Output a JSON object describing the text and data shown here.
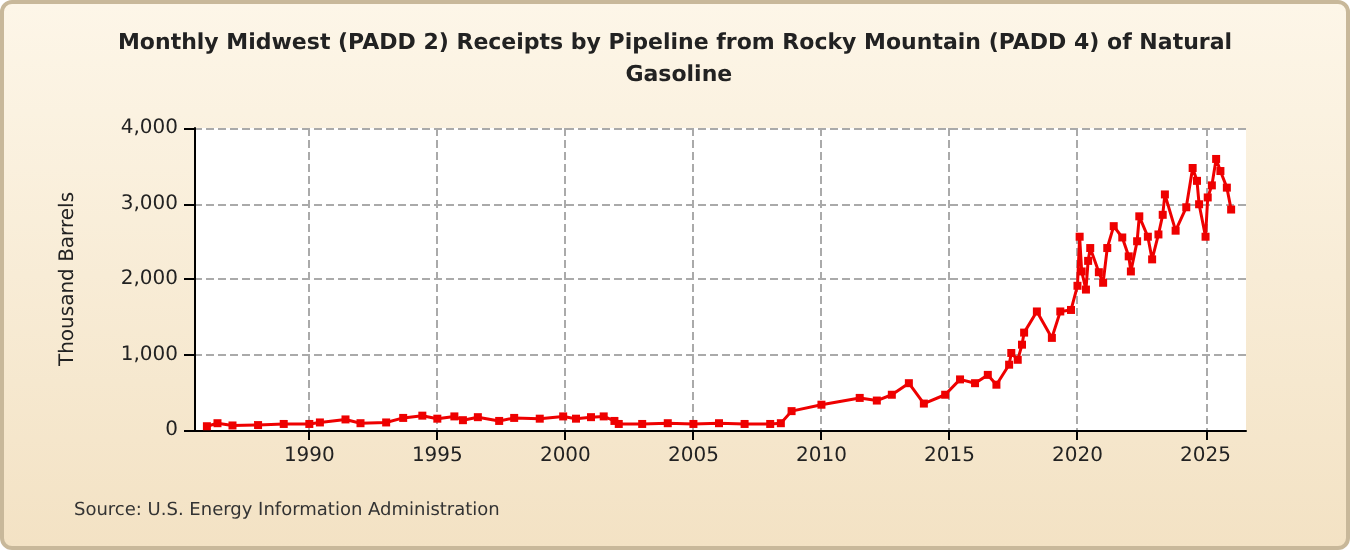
{
  "chart_data": {
    "type": "line",
    "title": "Monthly Midwest (PADD 2) Receipts by Pipeline from Rocky Mountain (PADD 4) of Natural Gasoline",
    "ylabel": "Thousand Barrels",
    "annotations": [
      "Source: U.S. Energy Information Administration"
    ],
    "x": [
      "1986-01",
      "1986-06",
      "1987-01",
      "1988-01",
      "1989-01",
      "1990-01",
      "1990-06",
      "1991-06",
      "1992-01",
      "1993-01",
      "1993-09",
      "1994-06",
      "1995-01",
      "1995-09",
      "1996-01",
      "1996-08",
      "1997-06",
      "1998-01",
      "1999-01",
      "1999-12",
      "2000-06",
      "2001-01",
      "2001-07",
      "2001-12",
      "2002-02",
      "2003-01",
      "2004-01",
      "2005-01",
      "2006-01",
      "2007-01",
      "2008-01",
      "2008-06",
      "2008-11",
      "2010-01",
      "2011-07",
      "2012-03",
      "2012-10",
      "2013-06",
      "2014-01",
      "2014-11",
      "2015-06",
      "2016-01",
      "2016-07",
      "2016-11",
      "2017-05",
      "2017-06",
      "2017-09",
      "2017-11",
      "2017-12",
      "2018-06",
      "2019-01",
      "2019-05",
      "2019-10",
      "2020-01",
      "2020-02",
      "2020-03",
      "2020-05",
      "2020-06",
      "2020-07",
      "2020-11",
      "2021-01",
      "2021-03",
      "2021-06",
      "2021-10",
      "2022-01",
      "2022-02",
      "2022-05",
      "2022-06",
      "2022-10",
      "2022-12",
      "2023-03",
      "2023-05",
      "2023-06",
      "2023-11",
      "2024-04",
      "2024-07",
      "2024-09",
      "2024-10",
      "2025-01",
      "2025-02",
      "2025-04",
      "2025-06",
      "2025-08",
      "2025-11",
      "2026-01"
    ],
    "series": [
      {
        "color": "#ee0000",
        "values": [
          50,
          90,
          60,
          65,
          80,
          80,
          100,
          140,
          90,
          100,
          160,
          190,
          150,
          180,
          130,
          170,
          120,
          160,
          150,
          180,
          150,
          170,
          180,
          120,
          80,
          80,
          90,
          80,
          90,
          80,
          80,
          90,
          250,
          335,
          425,
          390,
          467,
          620,
          350,
          467,
          670,
          620,
          730,
          600,
          865,
          1020,
          930,
          1130,
          1290,
          1570,
          1220,
          1570,
          1590,
          1910,
          2560,
          2100,
          1860,
          2240,
          2410,
          2090,
          1950,
          2410,
          2700,
          2550,
          2300,
          2100,
          2500,
          2830,
          2560,
          2260,
          2590,
          2850,
          3120,
          2640,
          2950,
          3470,
          3300,
          2990,
          2560,
          3080,
          3240,
          3590,
          3430,
          3210,
          2920
        ]
      }
    ],
    "xlim": [
      "1985-07",
      "2026-08"
    ],
    "xticks": [
      "1990",
      "1995",
      "2000",
      "2005",
      "2010",
      "2015",
      "2020",
      "2025"
    ],
    "ylim": [
      0,
      4000
    ],
    "yticks": [
      {
        "value": 0,
        "label": "0"
      },
      {
        "value": 1000,
        "label": "1,000"
      },
      {
        "value": 2000,
        "label": "2,000"
      },
      {
        "value": 3000,
        "label": "3,000"
      },
      {
        "value": 4000,
        "label": "4,000"
      }
    ],
    "grid": true,
    "marker": "square",
    "line_style": "solid"
  }
}
